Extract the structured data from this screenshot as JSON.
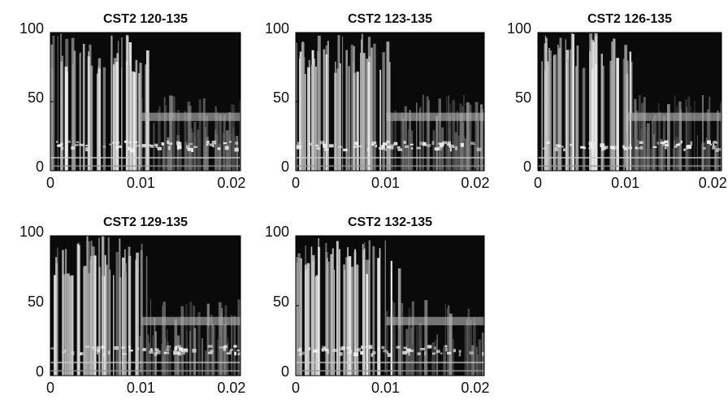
{
  "chart_data": [
    {
      "type": "spectrogram",
      "title": "CST2 120-135",
      "xlim": [
        0,
        0.021
      ],
      "xticks": [
        0,
        0.01,
        0.02
      ],
      "ylim": [
        0,
        100
      ],
      "yticks": [
        0,
        50,
        100
      ]
    },
    {
      "type": "spectrogram",
      "title": "CST2 123-135",
      "xlim": [
        0,
        0.021
      ],
      "xticks": [
        0,
        0.01,
        0.02
      ],
      "ylim": [
        0,
        100
      ],
      "yticks": [
        0,
        50,
        100
      ]
    },
    {
      "type": "spectrogram",
      "title": "CST2 126-135",
      "xlim": [
        0,
        0.021
      ],
      "xticks": [
        0,
        0.01,
        0.02
      ],
      "ylim": [
        0,
        100
      ],
      "yticks": [
        0,
        50,
        100
      ]
    },
    {
      "type": "spectrogram",
      "title": "CST2 129-135",
      "xlim": [
        0,
        0.021
      ],
      "xticks": [
        0,
        0.01,
        0.02
      ],
      "ylim": [
        0,
        100
      ],
      "yticks": [
        0,
        50,
        100
      ]
    },
    {
      "type": "spectrogram",
      "title": "CST2 132-135",
      "xlim": [
        0,
        0.021
      ],
      "xticks": [
        0,
        0.01,
        0.02
      ],
      "ylim": [
        0,
        100
      ],
      "yticks": [
        0,
        50,
        100
      ]
    }
  ]
}
